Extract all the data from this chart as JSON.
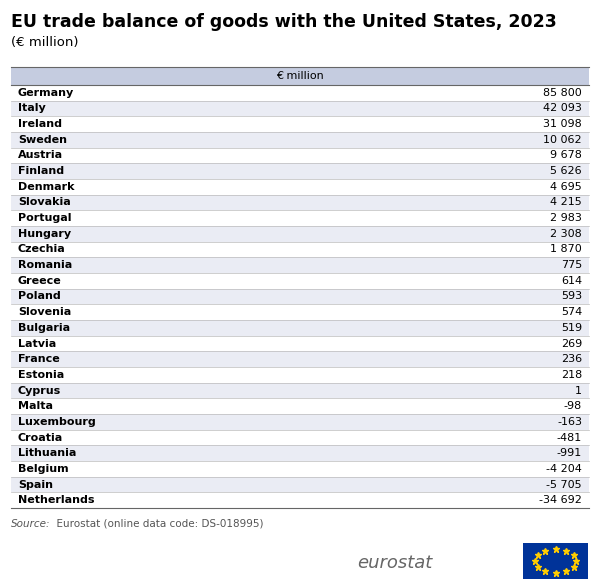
{
  "title": "EU trade balance of goods with the United States, 2023",
  "subtitle": "(€ million)",
  "header": "€ million",
  "source_italic": "Source:",
  "source_normal": "  Eurostat (online data code: DS-018995)",
  "countries": [
    "Germany",
    "Italy",
    "Ireland",
    "Sweden",
    "Austria",
    "Finland",
    "Denmark",
    "Slovakia",
    "Portugal",
    "Hungary",
    "Czechia",
    "Romania",
    "Greece",
    "Poland",
    "Slovenia",
    "Bulgaria",
    "Latvia",
    "France",
    "Estonia",
    "Cyprus",
    "Malta",
    "Luxembourg",
    "Croatia",
    "Lithuania",
    "Belgium",
    "Spain",
    "Netherlands"
  ],
  "values": [
    "85 800",
    "42 093",
    "31 098",
    "10 062",
    "9 678",
    "5 626",
    "4 695",
    "4 215",
    "2 983",
    "2 308",
    "1 870",
    "775",
    "614",
    "593",
    "574",
    "519",
    "269",
    "236",
    "218",
    "1",
    "-98",
    "-163",
    "-481",
    "-991",
    "-4 204",
    "-5 705",
    "-34 692"
  ],
  "header_bg": "#c5cce0",
  "row_bg_odd": "#ffffff",
  "row_bg_even": "#eaecf4",
  "border_color": "#666666",
  "row_line_color": "#bbbbbb",
  "title_color": "#000000",
  "text_color": "#000000",
  "header_text_color": "#000000",
  "source_color": "#555555",
  "title_fontsize": 12.5,
  "subtitle_fontsize": 9.5,
  "header_fontsize": 8,
  "row_fontsize": 8,
  "source_fontsize": 7.5,
  "eurostat_color": "#666666",
  "eurostat_fontsize": 13,
  "flag_blue": "#003399",
  "flag_yellow": "#FFCC00"
}
